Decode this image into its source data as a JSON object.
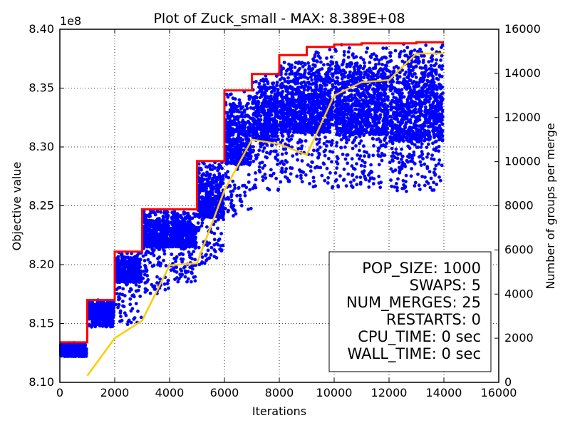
{
  "chart_data": {
    "type": "scatter",
    "title": "Plot of Zuck_small - MAX: 8.389E+08",
    "xlabel": "Iterations",
    "ylabel": "Objective value",
    "y2label": "Number of groups per merge",
    "y_exponent_label": "1e8",
    "xlim": [
      0,
      16000
    ],
    "ylim": [
      8.1,
      8.4
    ],
    "y2lim": [
      0,
      16000
    ],
    "x_ticks": [
      0,
      2000,
      4000,
      6000,
      8000,
      10000,
      12000,
      14000,
      16000
    ],
    "y_ticks": [
      8.1,
      8.15,
      8.2,
      8.25,
      8.3,
      8.35,
      8.4
    ],
    "y_tick_labels": [
      "8.10",
      "8.15",
      "8.20",
      "8.25",
      "8.30",
      "8.35",
      "8.40"
    ],
    "y2_ticks": [
      0,
      2000,
      4000,
      6000,
      8000,
      10000,
      12000,
      14000,
      16000
    ],
    "grid": true,
    "colors": {
      "population": "#0000ff",
      "max_line": "#ff0000",
      "groups_line": "#ffcc00"
    },
    "max_line": {
      "x": [
        0,
        1000,
        1000,
        2000,
        2000,
        3000,
        3000,
        5000,
        5000,
        6000,
        6000,
        7000,
        7000,
        8000,
        8000,
        9000,
        9000,
        10000,
        10000,
        11000,
        11000,
        13000,
        13000,
        14000
      ],
      "y": [
        8.134,
        8.134,
        8.17,
        8.17,
        8.211,
        8.211,
        8.247,
        8.247,
        8.288,
        8.288,
        8.348,
        8.348,
        8.362,
        8.362,
        8.378,
        8.378,
        8.385,
        8.385,
        8.387,
        8.387,
        8.388,
        8.388,
        8.389,
        8.389
      ]
    },
    "population_bands": [
      {
        "x_start": 0,
        "x_end": 1000,
        "y_low": 8.123,
        "y_high": 8.134,
        "scatter_low": 8.122
      },
      {
        "x_start": 1000,
        "x_end": 2000,
        "y_low": 8.155,
        "y_high": 8.17,
        "scatter_low": 8.147
      },
      {
        "x_start": 2000,
        "x_end": 3000,
        "y_low": 8.185,
        "y_high": 8.211,
        "scatter_low": 8.148
      },
      {
        "x_start": 3000,
        "x_end": 4000,
        "y_low": 8.215,
        "y_high": 8.247,
        "scatter_low": 8.175
      },
      {
        "x_start": 4000,
        "x_end": 5000,
        "y_low": 8.215,
        "y_high": 8.247,
        "scatter_low": 8.185
      },
      {
        "x_start": 5000,
        "x_end": 6000,
        "y_low": 8.24,
        "y_high": 8.288,
        "scatter_low": 8.2
      },
      {
        "x_start": 6000,
        "x_end": 7000,
        "y_low": 8.285,
        "y_high": 8.348,
        "scatter_low": 8.24
      },
      {
        "x_start": 7000,
        "x_end": 8000,
        "y_low": 8.305,
        "y_high": 8.362,
        "scatter_low": 8.262
      },
      {
        "x_start": 8000,
        "x_end": 9000,
        "y_low": 8.312,
        "y_high": 8.378,
        "scatter_low": 8.27
      },
      {
        "x_start": 9000,
        "x_end": 10000,
        "y_low": 8.312,
        "y_high": 8.385,
        "scatter_low": 8.265
      },
      {
        "x_start": 10000,
        "x_end": 12000,
        "y_low": 8.31,
        "y_high": 8.387,
        "scatter_low": 8.265
      },
      {
        "x_start": 12000,
        "x_end": 14000,
        "y_low": 8.305,
        "y_high": 8.388,
        "scatter_low": 8.262
      }
    ],
    "groups_line": {
      "x": [
        1000,
        2000,
        3000,
        4000,
        5000,
        6000,
        7000,
        8000,
        9000,
        10000,
        11000,
        12000,
        13000,
        14000
      ],
      "y": [
        300,
        2000,
        2800,
        5300,
        5400,
        8700,
        11000,
        10800,
        10300,
        13000,
        13600,
        13700,
        14900,
        14900
      ]
    },
    "stats_box": [
      "POP_SIZE: 1000",
      "SWAPS: 5",
      "NUM_MERGES: 25",
      "RESTARTS: 0",
      "CPU_TIME: 0 sec",
      "WALL_TIME: 0 sec"
    ]
  }
}
